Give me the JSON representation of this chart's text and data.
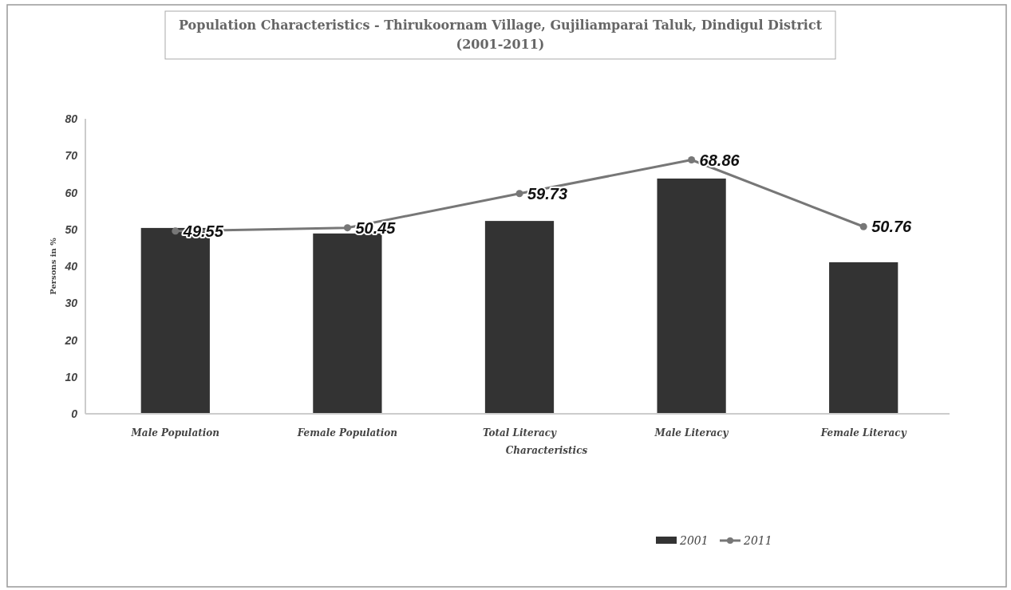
{
  "chart_data": {
    "type": "bar",
    "title": "Population Characteristics - Thirukoornam Village, Gujiliamparai  Taluk, Dindigul District (2001-2011)",
    "xlabel": "Characteristics",
    "ylabel": "Persons in %",
    "categories": [
      "Male Population",
      "Female Population",
      "Total Literacy",
      "Male Literacy",
      "Female Literacy"
    ],
    "series": [
      {
        "name": "2001",
        "color": "#333333",
        "values": [
          50.4,
          48.9,
          52.3,
          63.8,
          41.1
        ]
      },
      {
        "name": "2011",
        "type": "line",
        "color": "#777777",
        "values": [
          49.55,
          50.45,
          59.73,
          68.86,
          50.76
        ],
        "value_labels": [
          "49.55",
          "50.45",
          "59.73",
          "68.86",
          "50.76"
        ]
      }
    ],
    "ylim": [
      0,
      80
    ],
    "yticks": [
      0,
      10,
      20,
      30,
      40,
      50,
      60,
      70,
      80
    ],
    "grid": false,
    "legend": "bottom",
    "marker": "circle"
  }
}
